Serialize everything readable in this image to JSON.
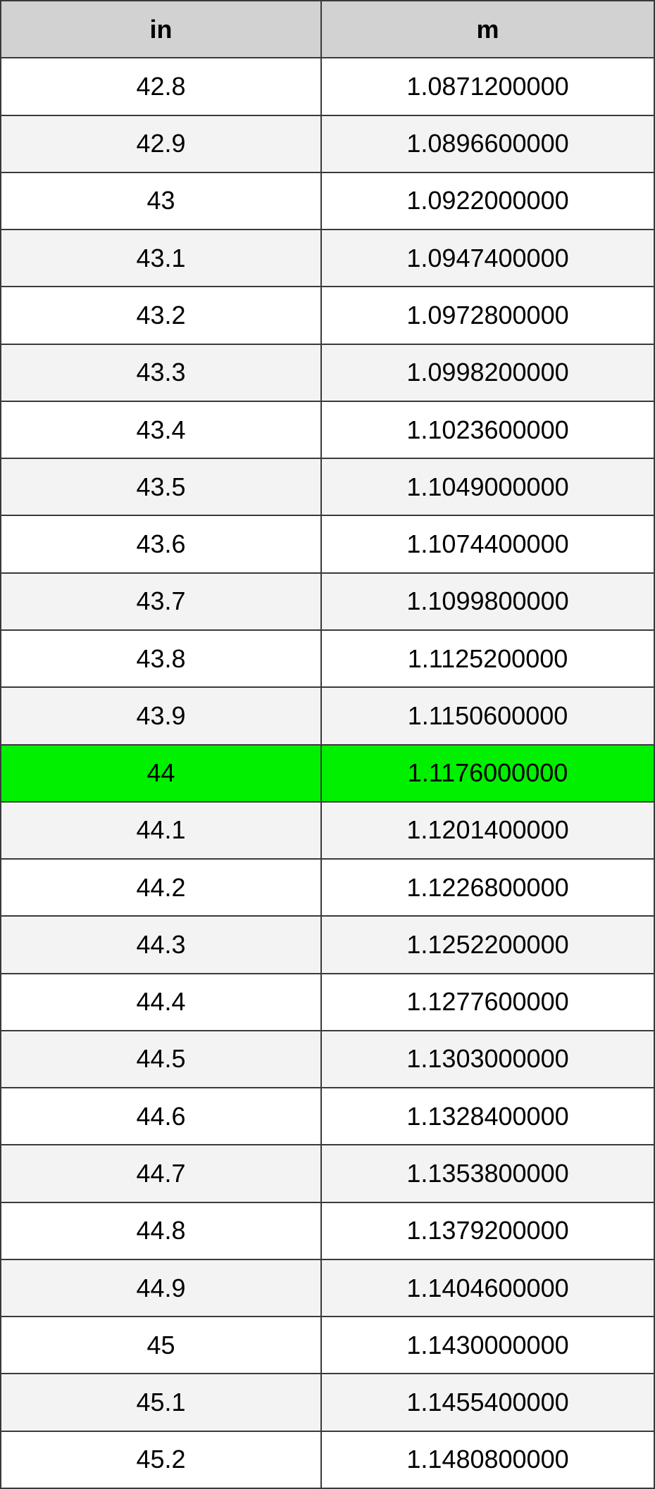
{
  "table": {
    "header": [
      "in",
      "m"
    ],
    "rows": [
      [
        "42.8",
        "1.0871200000"
      ],
      [
        "42.9",
        "1.0896600000"
      ],
      [
        "43",
        "1.0922000000"
      ],
      [
        "43.1",
        "1.0947400000"
      ],
      [
        "43.2",
        "1.0972800000"
      ],
      [
        "43.3",
        "1.0998200000"
      ],
      [
        "43.4",
        "1.1023600000"
      ],
      [
        "43.5",
        "1.1049000000"
      ],
      [
        "43.6",
        "1.1074400000"
      ],
      [
        "43.7",
        "1.1099800000"
      ],
      [
        "43.8",
        "1.1125200000"
      ],
      [
        "43.9",
        "1.1150600000"
      ],
      [
        "44",
        "1.1176000000"
      ],
      [
        "44.1",
        "1.1201400000"
      ],
      [
        "44.2",
        "1.1226800000"
      ],
      [
        "44.3",
        "1.1252200000"
      ],
      [
        "44.4",
        "1.1277600000"
      ],
      [
        "44.5",
        "1.1303000000"
      ],
      [
        "44.6",
        "1.1328400000"
      ],
      [
        "44.7",
        "1.1353800000"
      ],
      [
        "44.8",
        "1.1379200000"
      ],
      [
        "44.9",
        "1.1404600000"
      ],
      [
        "45",
        "1.1430000000"
      ],
      [
        "45.1",
        "1.1455400000"
      ],
      [
        "45.2",
        "1.1480800000"
      ]
    ]
  }
}
